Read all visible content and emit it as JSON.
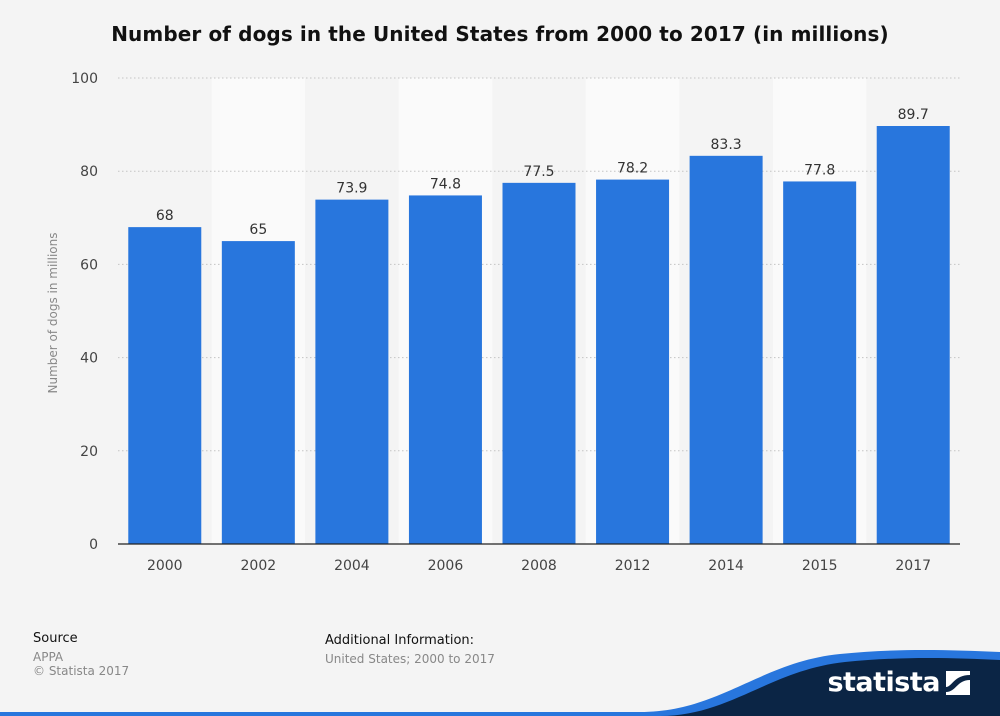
{
  "header": {
    "title": "Number of dogs in the United States from 2000 to 2017 (in millions)"
  },
  "chart_data": {
    "type": "bar",
    "title": "Number of dogs in the United States from 2000 to 2017 (in millions)",
    "xlabel": "",
    "ylabel": "Number of dogs in millions",
    "categories": [
      "2000",
      "2002",
      "2004",
      "2006",
      "2008",
      "2012",
      "2014",
      "2015",
      "2017"
    ],
    "values": [
      68,
      65,
      73.9,
      74.8,
      77.5,
      78.2,
      83.3,
      77.8,
      89.7
    ],
    "value_labels": [
      "68",
      "65",
      "73.9",
      "74.8",
      "77.5",
      "78.2",
      "83.3",
      "77.8",
      "89.7"
    ],
    "ylim": [
      0,
      100
    ],
    "yticks": [
      0,
      20,
      40,
      60,
      80,
      100
    ],
    "grid": true,
    "bar_color": "#2876dd",
    "band_color": "#fafafa"
  },
  "footer": {
    "source_heading": "Source",
    "source_name": "APPA",
    "copyright": "© Statista 2017",
    "additional_heading": "Additional Information:",
    "additional_text": "United States; 2000 to 2017"
  },
  "brand": {
    "name": "statista",
    "icon": "statista-logo-icon",
    "wave_color": "#0b2545",
    "accent_color": "#2876dd"
  }
}
